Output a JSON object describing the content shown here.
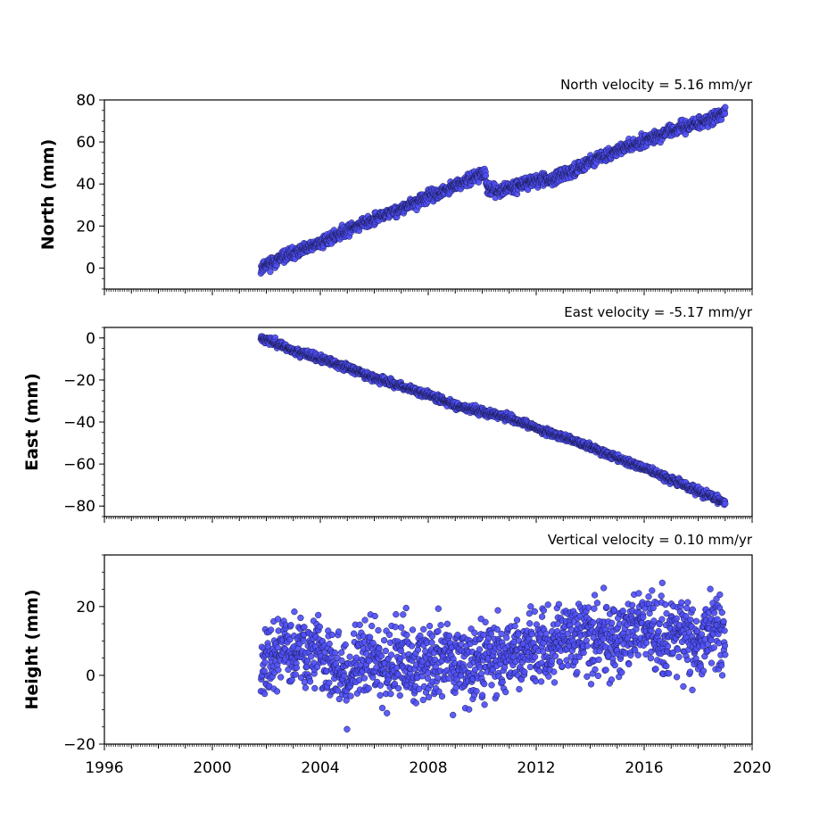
{
  "chart_data": [
    {
      "type": "scatter",
      "title": "North velocity = 5.16 mm/yr",
      "ylabel": "North (mm)",
      "xlim": [
        1996,
        2020
      ],
      "ylim": [
        -10,
        80
      ],
      "yticks": [
        0,
        20,
        40,
        60,
        80
      ],
      "x_tick_labels_shown": false,
      "series": [
        {
          "color": "#4f4ff7",
          "x": [
            2001.8,
            2002.0,
            2002.3,
            2002.6,
            2003.0,
            2003.5,
            2004.0,
            2004.5,
            2005.0,
            2005.5,
            2006.0,
            2006.5,
            2007.0,
            2007.5,
            2008.0,
            2008.5,
            2009.0,
            2009.5,
            2010.0,
            2010.1,
            2010.2,
            2010.5,
            2011.0,
            2011.5,
            2012.0,
            2012.5,
            2013.0,
            2013.5,
            2014.0,
            2014.5,
            2015.0,
            2015.5,
            2016.0,
            2016.5,
            2017.0,
            2017.5,
            2018.0,
            2018.5,
            2019.0
          ],
          "y": [
            0,
            2,
            3,
            5,
            7,
            9,
            12,
            15,
            18,
            21,
            23,
            26,
            28,
            31,
            34,
            36,
            39,
            42,
            45,
            45,
            37,
            37,
            38,
            40,
            42,
            42,
            44,
            47,
            51,
            53,
            56,
            58,
            61,
            63,
            65,
            67,
            69,
            71,
            74
          ]
        }
      ]
    },
    {
      "type": "scatter",
      "title": "East velocity = -5.17 mm/yr",
      "ylabel": "East (mm)",
      "xlim": [
        1996,
        2020
      ],
      "ylim": [
        -85,
        5
      ],
      "yticks": [
        0,
        -20,
        -40,
        -60,
        -80
      ],
      "ytick_labels": [
        "0",
        "−20",
        "−40",
        "−60",
        "−80"
      ],
      "x_tick_labels_shown": false,
      "series": [
        {
          "color": "#4f4ff7",
          "x": [
            2001.8,
            2002.5,
            2003.0,
            2004.0,
            2005.0,
            2006.0,
            2007.0,
            2008.0,
            2009.0,
            2010.0,
            2011.0,
            2012.0,
            2013.0,
            2014.0,
            2015.0,
            2016.0,
            2017.0,
            2018.0,
            2019.0
          ],
          "y": [
            0,
            -3,
            -6,
            -10,
            -14,
            -19,
            -23,
            -27,
            -32,
            -35,
            -38,
            -43,
            -47,
            -52,
            -57,
            -62,
            -67,
            -73,
            -78
          ]
        }
      ]
    },
    {
      "type": "scatter",
      "title": "Vertical velocity = 0.10 mm/yr",
      "ylabel": "Height (mm)",
      "xlim": [
        1996,
        2020
      ],
      "ylim": [
        -20,
        35
      ],
      "yticks": [
        -20,
        0,
        20
      ],
      "ytick_labels": [
        "−20",
        "0",
        "20"
      ],
      "xticks": [
        1996,
        2000,
        2004,
        2008,
        2012,
        2016,
        2020
      ],
      "series": [
        {
          "color": "#4f4ff7",
          "x": [
            2001.8,
            2002.5,
            2003.0,
            2003.5,
            2004.0,
            2004.5,
            2005.0,
            2005.5,
            2006.0,
            2006.5,
            2007.0,
            2007.5,
            2008.0,
            2008.5,
            2009.0,
            2009.5,
            2010.0,
            2010.5,
            2011.0,
            2011.5,
            2012.0,
            2012.5,
            2013.0,
            2013.5,
            2014.0,
            2014.5,
            2015.0,
            2015.5,
            2016.0,
            2016.5,
            2017.0,
            2017.5,
            2018.0,
            2018.5,
            2019.0
          ],
          "y": [
            4,
            6,
            8,
            5,
            7,
            3,
            1,
            4,
            5,
            2,
            6,
            3,
            5,
            7,
            4,
            2,
            5,
            6,
            7,
            5,
            9,
            8,
            10,
            11,
            12,
            10,
            11,
            13,
            15,
            12,
            11,
            10,
            9,
            14,
            10
          ]
        }
      ]
    }
  ]
}
